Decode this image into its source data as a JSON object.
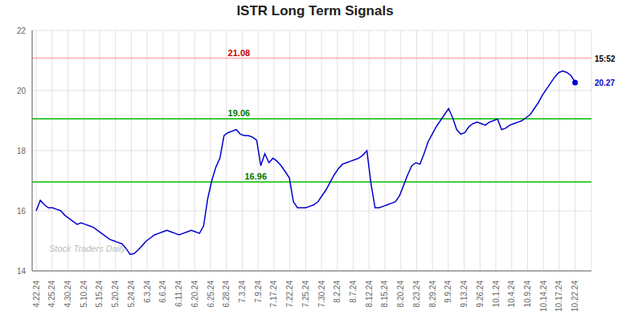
{
  "chart_data": {
    "type": "line",
    "title": "ISTR Long Term Signals",
    "values": [
      16.0,
      16.35,
      16.2,
      16.1,
      16.1,
      16.05,
      16.0,
      15.85,
      15.75,
      15.65,
      15.55,
      15.6,
      15.55,
      15.5,
      15.45,
      15.35,
      15.25,
      15.15,
      15.05,
      15.0,
      14.95,
      14.9,
      14.75,
      14.55,
      14.58,
      14.7,
      14.85,
      15.0,
      15.1,
      15.2,
      15.25,
      15.3,
      15.35,
      15.3,
      15.25,
      15.2,
      15.25,
      15.3,
      15.35,
      15.3,
      15.25,
      15.5,
      16.4,
      17.0,
      17.45,
      17.75,
      18.5,
      18.6,
      18.65,
      18.7,
      18.55,
      18.5,
      18.5,
      18.45,
      18.35,
      17.5,
      17.9,
      17.6,
      17.75,
      17.65,
      17.5,
      17.3,
      17.1,
      16.3,
      16.1,
      16.1,
      16.1,
      16.15,
      16.2,
      16.3,
      16.5,
      16.7,
      16.95,
      17.2,
      17.4,
      17.55,
      17.6,
      17.65,
      17.7,
      17.75,
      17.85,
      18.0,
      16.9,
      16.1,
      16.1,
      16.15,
      16.2,
      16.25,
      16.3,
      16.5,
      16.85,
      17.2,
      17.5,
      17.6,
      17.55,
      17.9,
      18.3,
      18.55,
      18.8,
      19.0,
      19.2,
      19.4,
      19.1,
      18.7,
      18.55,
      18.6,
      18.8,
      18.9,
      18.95,
      18.9,
      18.85,
      18.95,
      19.0,
      19.05,
      18.7,
      18.75,
      18.85,
      18.9,
      18.95,
      19.0,
      19.1,
      19.2,
      19.4,
      19.6,
      19.85,
      20.05,
      20.25,
      20.45,
      20.6,
      20.65,
      20.6,
      20.5,
      20.27
    ],
    "color": "#0000cc",
    "dot_color": "#0000cc",
    "xlim": [
      -1,
      136
    ],
    "xticks": [
      {
        "value": 0,
        "label": "4.22.24"
      },
      {
        "value": 3.8823529411764706,
        "label": "4.25.24"
      },
      {
        "value": 7.764705882352941,
        "label": "4.30.24"
      },
      {
        "value": 11.647058823529411,
        "label": "5.10.24"
      },
      {
        "value": 15.529411764705882,
        "label": "5.15.24"
      },
      {
        "value": 19.41176470588235,
        "label": "5.20.24"
      },
      {
        "value": 23.294117647058822,
        "label": "5.24.24"
      },
      {
        "value": 27.176470588235293,
        "label": "6.3.24"
      },
      {
        "value": 31.058823529411764,
        "label": "6.6.24"
      },
      {
        "value": 34.94117647058823,
        "label": "6.11.24"
      },
      {
        "value": 38.82352941176471,
        "label": "6.20.24"
      },
      {
        "value": 42.705882352941174,
        "label": "6.25.24"
      },
      {
        "value": 46.588235294117645,
        "label": "6.28.24"
      },
      {
        "value": 50.470588235294116,
        "label": "7.3.24"
      },
      {
        "value": 54.35294117647059,
        "label": "7.9.24"
      },
      {
        "value": 58.23529411764706,
        "label": "7.17.24"
      },
      {
        "value": 62.11764705882353,
        "label": "7.22.24"
      },
      {
        "value": 66,
        "label": "7.25.24"
      },
      {
        "value": 69.88235294117646,
        "label": "7.30.24"
      },
      {
        "value": 73.76470588235294,
        "label": "8.2.24"
      },
      {
        "value": 77.6470588235294,
        "label": "8.7.24"
      },
      {
        "value": 81.52941176470588,
        "label": "8.12.24"
      },
      {
        "value": 85.41176470588235,
        "label": "8.15.24"
      },
      {
        "value": 89.29411764705883,
        "label": "8.20.24"
      },
      {
        "value": 93.17647058823529,
        "label": "8.23.24"
      },
      {
        "value": 97.05882352941177,
        "label": "8.29.24"
      },
      {
        "value": 100.94117647058823,
        "label": "9.9.24"
      },
      {
        "value": 104.82352941176471,
        "label": "9.13.24"
      },
      {
        "value": 108.70588235294117,
        "label": "9.26.24"
      },
      {
        "value": 112.58823529411765,
        "label": "10.1.24"
      },
      {
        "value": 116.47058823529412,
        "label": "10.4.24"
      },
      {
        "value": 120.3529411764706,
        "label": "10.9.24"
      },
      {
        "value": 124.23529411764706,
        "label": "10.14.24"
      },
      {
        "value": 128.11764705882354,
        "label": "10.17.24"
      },
      {
        "value": 132,
        "label": "10.22.24"
      }
    ],
    "ylim": [
      14,
      22
    ],
    "yticks": [
      14,
      16,
      18,
      20,
      22
    ],
    "grid": true,
    "grid_color": "#cccccc",
    "reference_lines": [
      {
        "value": 21.08,
        "label": "21.08",
        "color": "#ffaaaa",
        "label_color": "#cc0000"
      },
      {
        "value": 19.06,
        "label": "19.06",
        "color": "#00bb00",
        "label_color": "#007700"
      },
      {
        "value": 16.96,
        "label": "16.96",
        "color": "#00bb00",
        "label_color": "#007700"
      }
    ],
    "annotations": [
      {
        "text": "15:52",
        "y": 21.08,
        "color": "#000000"
      },
      {
        "text": "20.27",
        "y": 20.27,
        "color": "#0000cc"
      }
    ],
    "watermark": {
      "text": "Stock Traders Daily",
      "color": "#bbbbbb"
    }
  }
}
